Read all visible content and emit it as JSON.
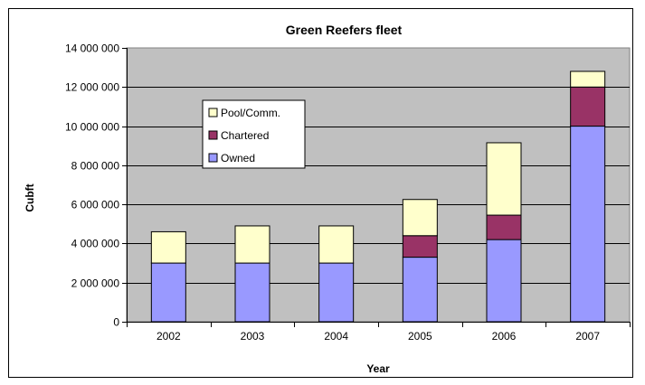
{
  "chart_data": {
    "type": "bar",
    "stacked": true,
    "title": "Green Reefers fleet",
    "xlabel": "Year",
    "ylabel": "Cubft",
    "categories": [
      "2002",
      "2003",
      "2004",
      "2005",
      "2006",
      "2007"
    ],
    "series": [
      {
        "name": "Owned",
        "color": "#9999ff",
        "values": [
          3000000,
          3000000,
          3000000,
          3300000,
          4200000,
          10000000
        ]
      },
      {
        "name": "Chartered",
        "color": "#993366",
        "values": [
          0,
          0,
          0,
          1100000,
          1250000,
          2000000
        ]
      },
      {
        "name": "Pool/Comm.",
        "color": "#ffffcc",
        "values": [
          1600000,
          1900000,
          1900000,
          1850000,
          3700000,
          800000
        ]
      }
    ],
    "ylim": [
      0,
      14000000
    ],
    "yticks": [
      0,
      2000000,
      4000000,
      6000000,
      8000000,
      10000000,
      12000000,
      14000000
    ],
    "ytick_labels": [
      "0",
      "2 000 000",
      "4 000 000",
      "6 000 000",
      "8 000 000",
      "10 000 000",
      "12 000 000",
      "14 000 000"
    ],
    "legend_order": [
      "Pool/Comm.",
      "Chartered",
      "Owned"
    ],
    "legend_position": "upper-left inside plot",
    "grid": true,
    "plot_background": "#c0c0c0"
  }
}
